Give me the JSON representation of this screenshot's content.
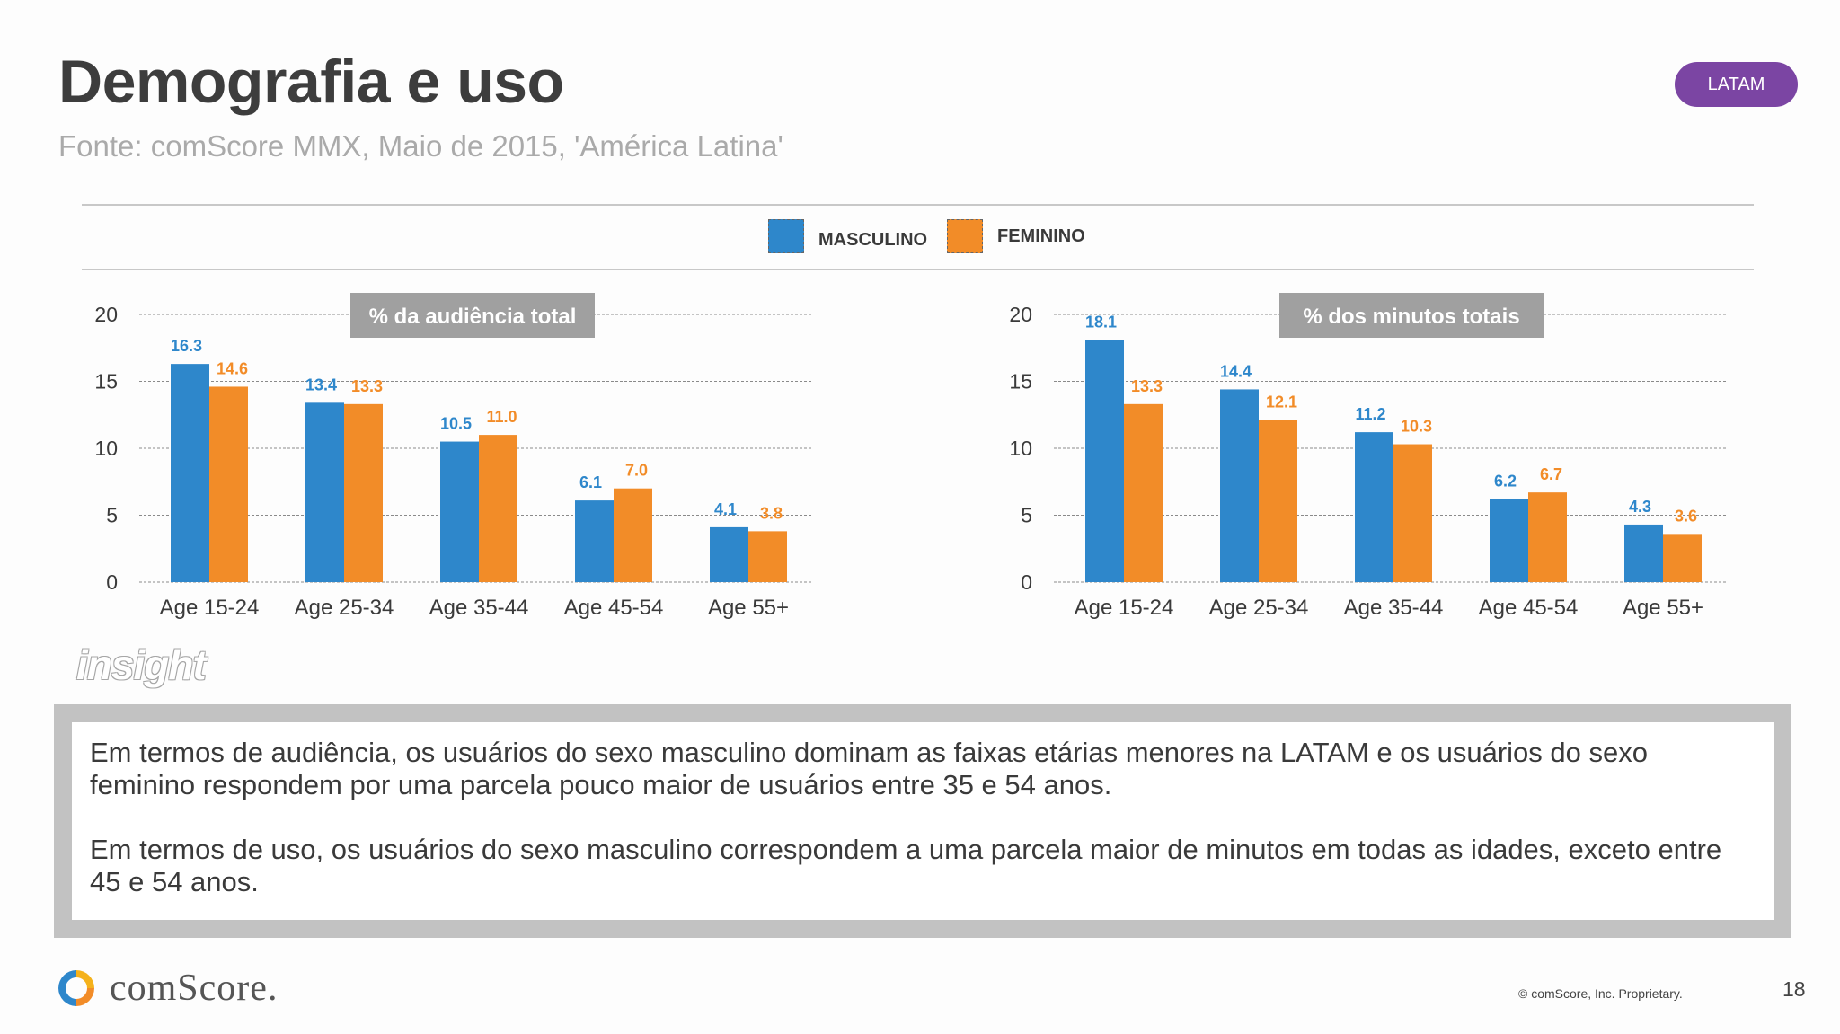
{
  "header": {
    "title": "Demografia e uso",
    "source": "Fonte: comScore MMX, Maio de 2015, 'América Latina'",
    "region_badge": "LATAM"
  },
  "legend": [
    {
      "label": "MASCULINO",
      "color": "#2e87cb"
    },
    {
      "label": "FEMININO",
      "color": "#f28c28"
    }
  ],
  "colors": {
    "male": "#2e87cb",
    "female": "#f28c28",
    "badge": "#7b45a3",
    "label_box": "#a0a0a0"
  },
  "chart_data": [
    {
      "type": "bar",
      "label": "% da audiência total",
      "categories": [
        "Age 15-24",
        "Age 25-34",
        "Age 35-44",
        "Age 45-54",
        "Age 55+"
      ],
      "series": [
        {
          "name": "MASCULINO",
          "values": [
            16.3,
            13.4,
            10.5,
            6.1,
            4.1
          ],
          "labels": [
            "16.3",
            "13.4",
            "10.5",
            "6.1",
            "4.1"
          ]
        },
        {
          "name": "FEMININO",
          "values": [
            14.6,
            13.3,
            11.0,
            7.0,
            3.8
          ],
          "labels": [
            "14.6",
            "13.3",
            "11.0",
            "7.0",
            "3.8"
          ]
        }
      ],
      "ylim": [
        0,
        20
      ],
      "yticks": [
        0,
        5,
        10,
        15,
        20
      ],
      "grid": true
    },
    {
      "type": "bar",
      "label": "% dos minutos totais",
      "categories": [
        "Age 15-24",
        "Age 25-34",
        "Age 35-44",
        "Age 45-54",
        "Age 55+"
      ],
      "series": [
        {
          "name": "MASCULINO",
          "values": [
            18.1,
            14.4,
            11.2,
            6.2,
            4.3
          ],
          "labels": [
            "18.1",
            "14.4",
            "11.2",
            "6.2",
            "4.3"
          ]
        },
        {
          "name": "FEMININO",
          "values": [
            13.3,
            12.1,
            10.3,
            6.7,
            3.6
          ],
          "labels": [
            "13.3",
            "12.1",
            "10.3",
            "6.7",
            "3.6"
          ]
        }
      ],
      "ylim": [
        0,
        20
      ],
      "yticks": [
        0,
        5,
        10,
        15,
        20
      ],
      "grid": true
    }
  ],
  "insight": {
    "logo": "insight",
    "paragraphs": [
      "Em termos de audiência, os usuários do sexo masculino dominam as faixas etárias menores na LATAM e os usuários do sexo feminino respondem por uma parcela pouco maior de usuários entre 35 e 54 anos.",
      "Em termos de uso, os usuários do sexo masculino correspondem a uma parcela maior de minutos em todas as idades, exceto entre 45 e 54 anos."
    ]
  },
  "footer": {
    "brand": "comScore.",
    "copyright": "© comScore, Inc. Proprietary.",
    "page_number": "18"
  }
}
